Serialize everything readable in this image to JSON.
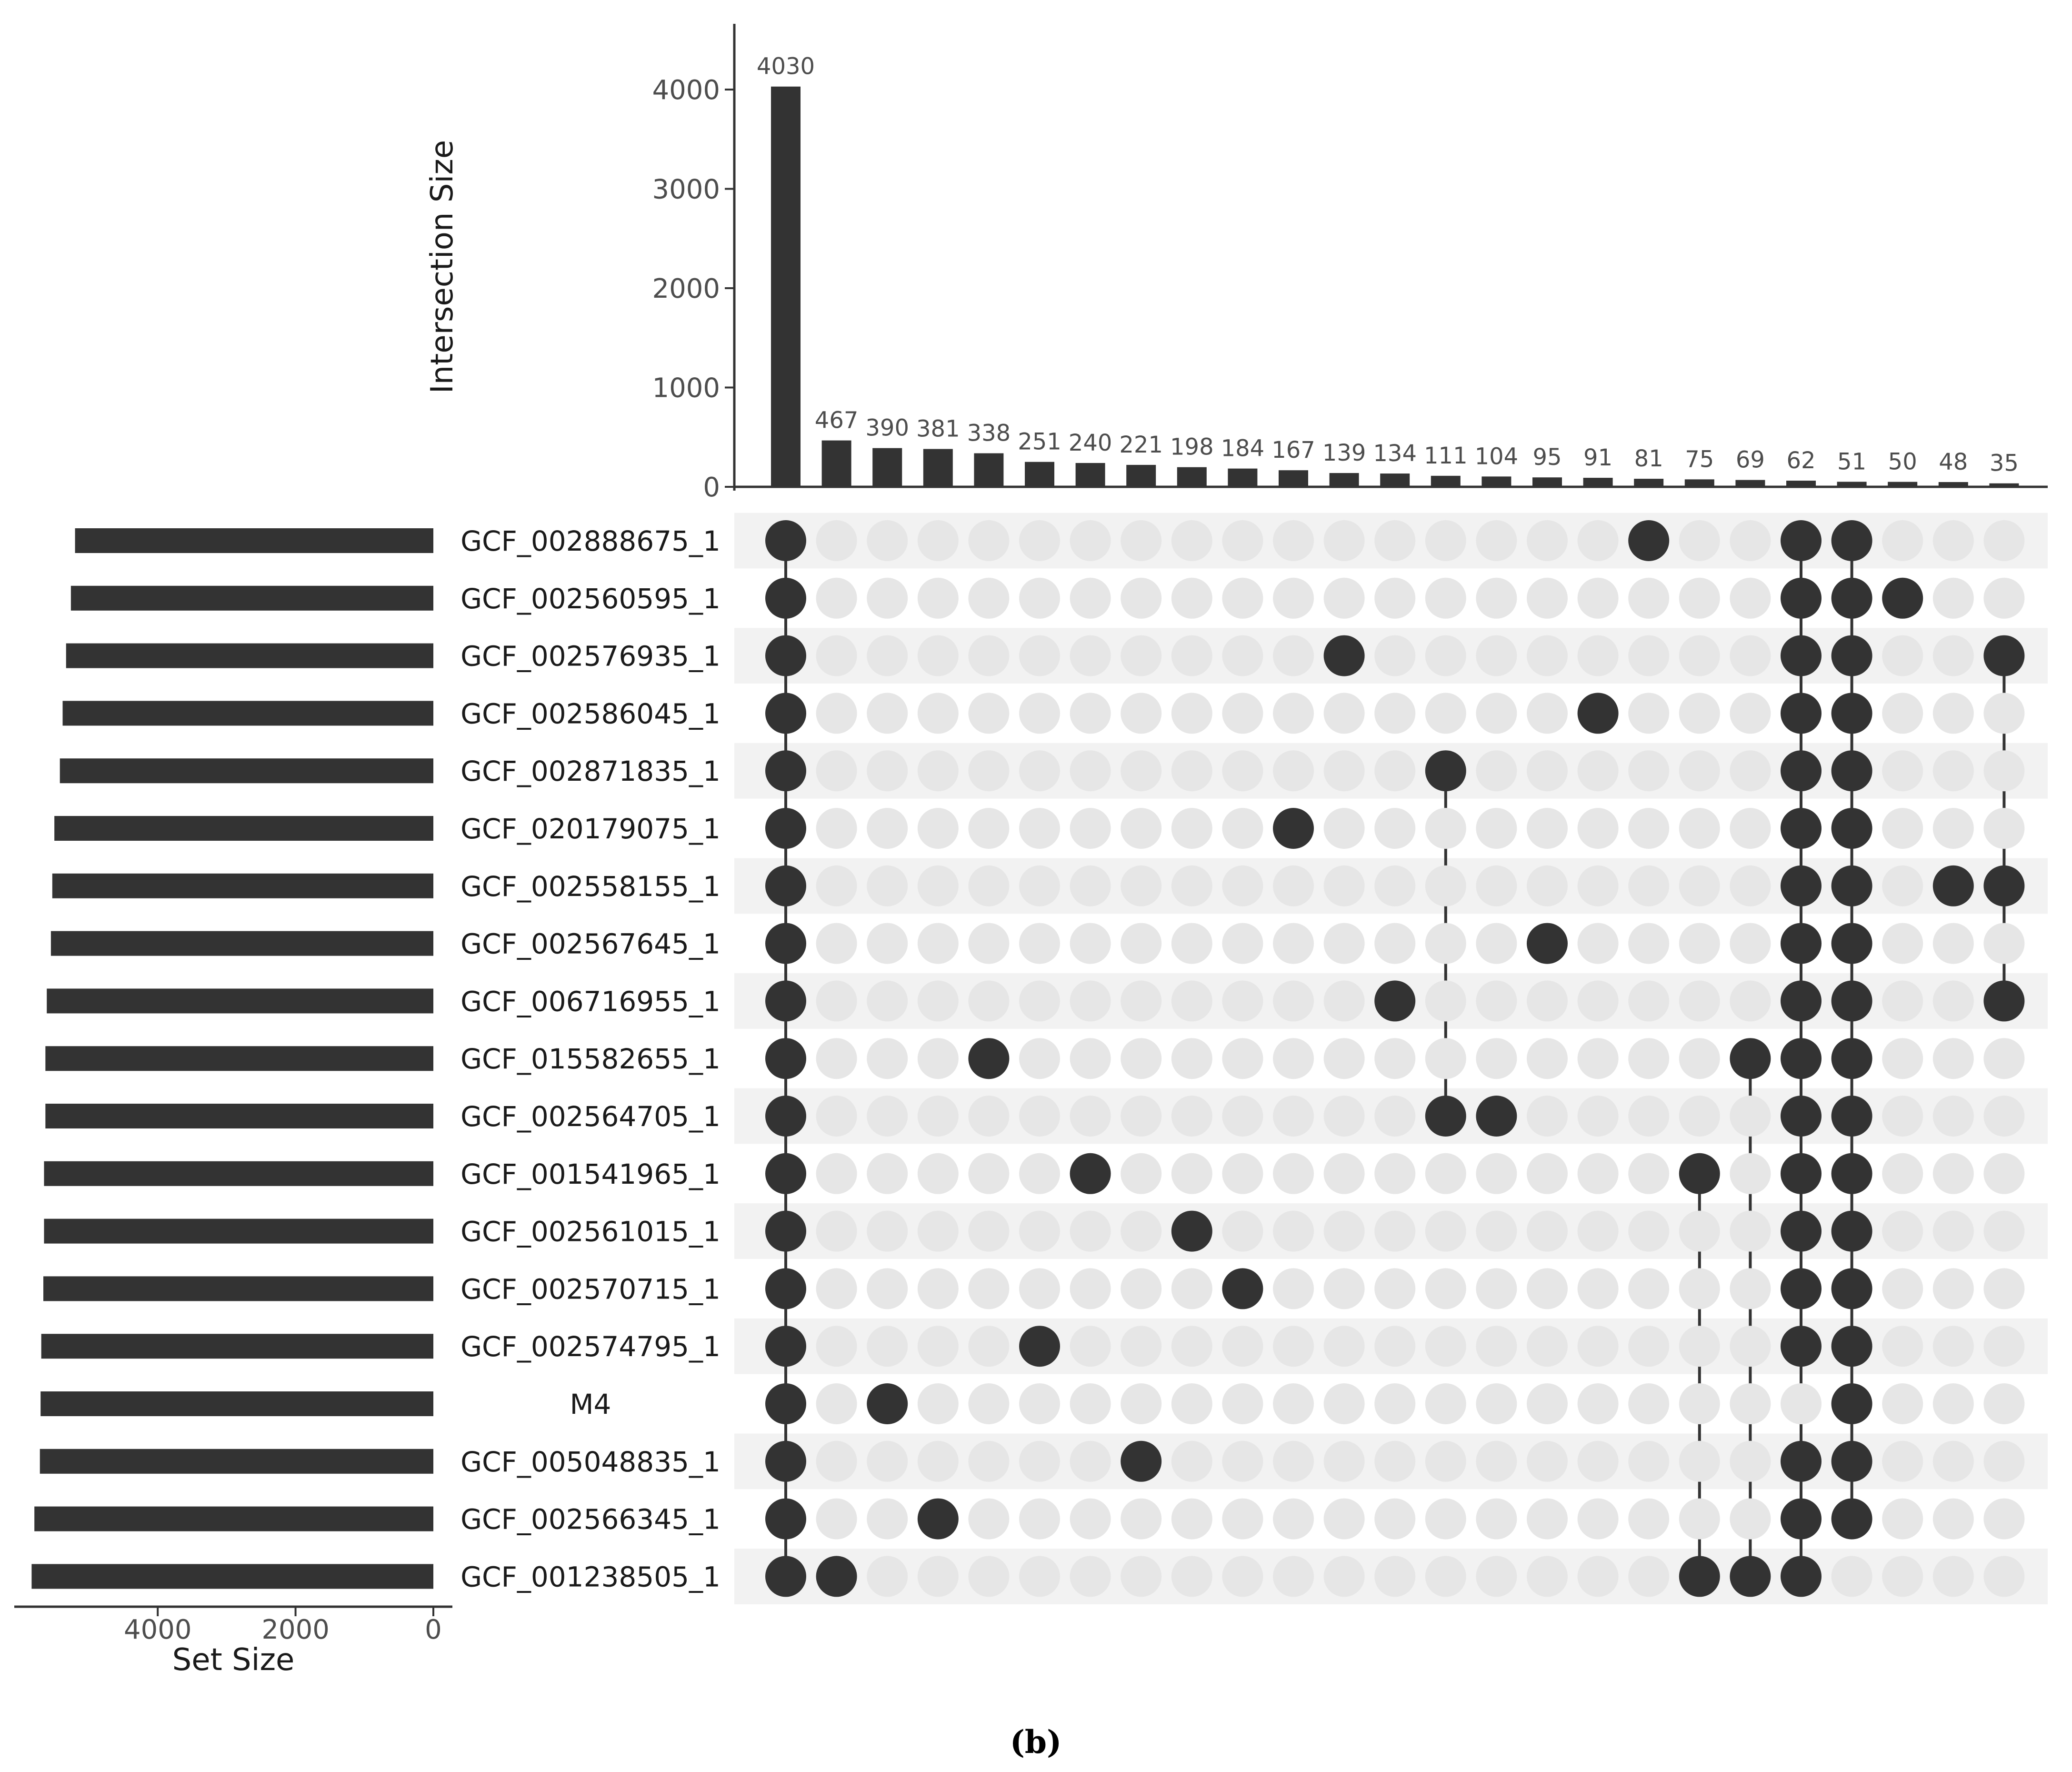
{
  "chart_data": {
    "type": "upset",
    "intersection_size_label": "Intersection Size",
    "set_size_label": "Set Size",
    "caption": "(b)",
    "intersection_axis": {
      "ylim": [
        0,
        4500
      ],
      "ticks": [
        0,
        1000,
        2000,
        3000,
        4000
      ],
      "tick_labels": [
        "0",
        "1000",
        "2000",
        "3000",
        "4000"
      ]
    },
    "set_size_axis": {
      "xlim": [
        0,
        6300
      ],
      "ticks": [
        4000,
        2000,
        0
      ],
      "tick_labels": [
        "4000",
        "2000",
        "0"
      ]
    },
    "sets": [
      {
        "name": "GCF_002888675_1",
        "size": 5200
      },
      {
        "name": "GCF_002560595_1",
        "size": 5260
      },
      {
        "name": "GCF_002576935_1",
        "size": 5330
      },
      {
        "name": "GCF_002586045_1",
        "size": 5380
      },
      {
        "name": "GCF_002871835_1",
        "size": 5420
      },
      {
        "name": "GCF_020179075_1",
        "size": 5500
      },
      {
        "name": "GCF_002558155_1",
        "size": 5530
      },
      {
        "name": "GCF_002567645_1",
        "size": 5550
      },
      {
        "name": "GCF_006716955_1",
        "size": 5610
      },
      {
        "name": "GCF_015582655_1",
        "size": 5630
      },
      {
        "name": "GCF_002564705_1",
        "size": 5630
      },
      {
        "name": "GCF_001541965_1",
        "size": 5650
      },
      {
        "name": "GCF_002561015_1",
        "size": 5650
      },
      {
        "name": "GCF_002570715_1",
        "size": 5660
      },
      {
        "name": "GCF_002574795_1",
        "size": 5690
      },
      {
        "name": "M4",
        "size": 5700
      },
      {
        "name": "GCF_005048835_1",
        "size": 5710
      },
      {
        "name": "GCF_002566345_1",
        "size": 5790
      },
      {
        "name": "GCF_001238505_1",
        "size": 5830
      }
    ],
    "intersections": [
      {
        "size": 4030,
        "label": "4030",
        "sets": [
          0,
          1,
          2,
          3,
          4,
          5,
          6,
          7,
          8,
          9,
          10,
          11,
          12,
          13,
          14,
          15,
          16,
          17,
          18
        ]
      },
      {
        "size": 467,
        "label": "467",
        "sets": [
          18
        ]
      },
      {
        "size": 390,
        "label": "390",
        "sets": [
          15
        ]
      },
      {
        "size": 381,
        "label": "381",
        "sets": [
          17
        ]
      },
      {
        "size": 338,
        "label": "338",
        "sets": [
          9
        ]
      },
      {
        "size": 251,
        "label": "251",
        "sets": [
          14
        ]
      },
      {
        "size": 240,
        "label": "240",
        "sets": [
          11
        ]
      },
      {
        "size": 221,
        "label": "221",
        "sets": [
          16
        ]
      },
      {
        "size": 198,
        "label": "198",
        "sets": [
          12
        ]
      },
      {
        "size": 184,
        "label": "184",
        "sets": [
          13
        ]
      },
      {
        "size": 167,
        "label": "167",
        "sets": [
          5
        ]
      },
      {
        "size": 139,
        "label": "139",
        "sets": [
          2
        ]
      },
      {
        "size": 134,
        "label": "134",
        "sets": [
          8
        ]
      },
      {
        "size": 111,
        "label": "111",
        "sets": [
          4,
          10
        ]
      },
      {
        "size": 104,
        "label": "104",
        "sets": [
          10
        ]
      },
      {
        "size": 95,
        "label": "95",
        "sets": [
          7
        ]
      },
      {
        "size": 91,
        "label": "91",
        "sets": [
          3
        ]
      },
      {
        "size": 81,
        "label": "81",
        "sets": [
          0
        ]
      },
      {
        "size": 75,
        "label": "75",
        "sets": [
          11,
          18
        ]
      },
      {
        "size": 69,
        "label": "69",
        "sets": [
          9,
          18
        ]
      },
      {
        "size": 62,
        "label": "62",
        "sets": [
          0,
          1,
          2,
          3,
          4,
          5,
          6,
          7,
          8,
          9,
          10,
          11,
          12,
          13,
          14,
          16,
          17,
          18
        ]
      },
      {
        "size": 51,
        "label": "51",
        "sets": [
          0,
          1,
          2,
          3,
          4,
          5,
          6,
          7,
          8,
          9,
          10,
          11,
          12,
          13,
          14,
          15,
          16,
          17
        ]
      },
      {
        "size": 50,
        "label": "50",
        "sets": [
          1
        ]
      },
      {
        "size": 48,
        "label": "48",
        "sets": [
          6
        ]
      },
      {
        "size": 35,
        "label": "35",
        "sets": [
          2,
          6,
          8
        ]
      }
    ],
    "colors": {
      "bar": "#333333",
      "dot_active": "#333333",
      "dot_inactive": "#e6e6e6",
      "stripe": "#f2f2f2",
      "axis": "#333333",
      "text": "#4d4d4d"
    }
  }
}
